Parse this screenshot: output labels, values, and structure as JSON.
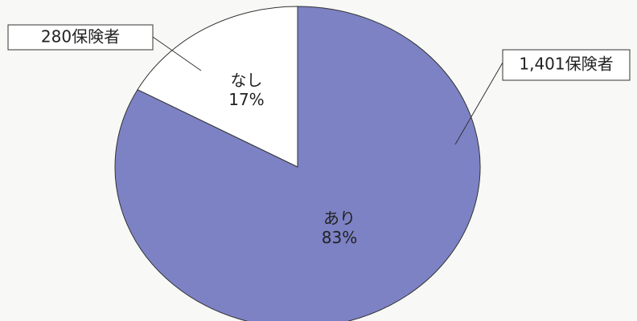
{
  "chart_data": {
    "type": "pie",
    "categories": [
      "あり",
      "なし"
    ],
    "values": [
      83,
      17
    ],
    "value_labels": [
      "83%",
      "17%"
    ],
    "colors": [
      "#7c82c4",
      "#ffffff"
    ],
    "annotations": [
      "1,401保険者",
      "280保険者"
    ]
  }
}
